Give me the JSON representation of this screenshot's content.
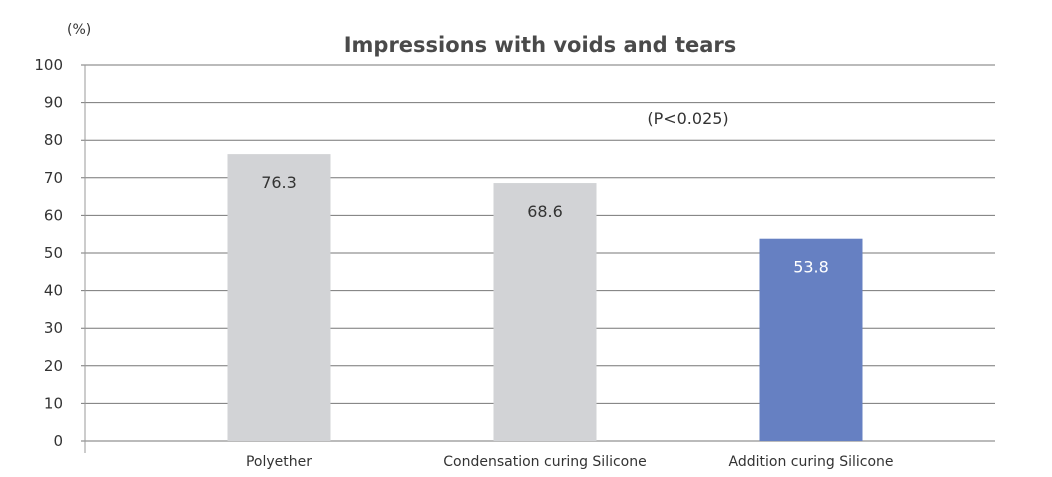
{
  "chart_data": {
    "type": "bar",
    "title": "Impressions with voids and tears",
    "ylabel": "(%)",
    "xlabel": "",
    "annotation": "(P<0.025)",
    "categories": [
      "Polyether",
      "Condensation curing Silicone",
      "Addition curing Silicone"
    ],
    "values": [
      76.3,
      68.6,
      53.8
    ],
    "value_labels": [
      "76.3",
      "68.6",
      "53.8"
    ],
    "bar_colors": [
      "#d2d3d6",
      "#d2d3d6",
      "#6680c2"
    ],
    "value_label_colors": [
      "#333333",
      "#333333",
      "#ffffff"
    ],
    "ylim": [
      0,
      100
    ],
    "yticks": [
      0,
      10,
      20,
      30,
      40,
      50,
      60,
      70,
      80,
      90,
      100
    ],
    "grid": true,
    "legend": "none"
  }
}
